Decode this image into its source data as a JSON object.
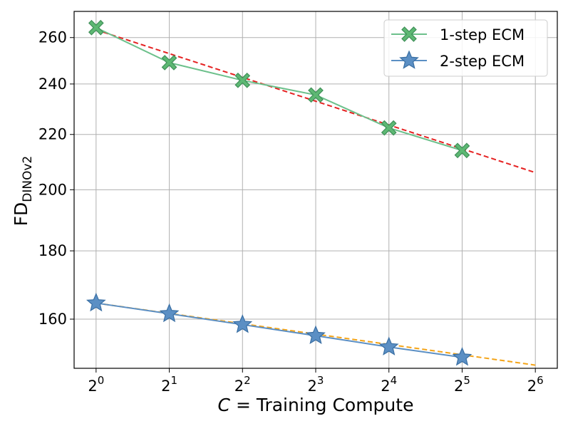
{
  "chart_data": {
    "type": "line",
    "x_scale": "log2",
    "y_scale": "log",
    "xlim_exp": [
      -0.3,
      6.3
    ],
    "ylim": [
      147,
      272
    ],
    "x_ticks": [
      {
        "base": "2",
        "exp": "0"
      },
      {
        "base": "2",
        "exp": "1"
      },
      {
        "base": "2",
        "exp": "2"
      },
      {
        "base": "2",
        "exp": "3"
      },
      {
        "base": "2",
        "exp": "4"
      },
      {
        "base": "2",
        "exp": "5"
      },
      {
        "base": "2",
        "exp": "6"
      }
    ],
    "x_tick_values": [
      1,
      2,
      4,
      8,
      16,
      32,
      64
    ],
    "y_ticks": [
      160,
      180,
      200,
      220,
      240,
      260
    ],
    "grid": true,
    "legend_position": "top-right",
    "xlabel": {
      "var": "C",
      "rest": " = Training Compute"
    },
    "ylabel": {
      "main": "FD",
      "sub": "DINOv2"
    },
    "series": [
      {
        "name": "1-step ECM",
        "marker": "x",
        "color": "#5db873",
        "line_color": "#6cc08b",
        "x": [
          1,
          2,
          4,
          8,
          16,
          32
        ],
        "y": [
          264.5,
          249,
          241.5,
          235.5,
          222.5,
          214
        ]
      },
      {
        "name": "2-step ECM",
        "marker": "star",
        "color": "#5b8fc4",
        "line_color": "#5b8fc4",
        "x": [
          1,
          2,
          4,
          8,
          16,
          32
        ],
        "y": [
          164.5,
          161.5,
          158.5,
          155.5,
          152.5,
          149.8
        ]
      }
    ],
    "fits": [
      {
        "color": "#e52121",
        "x": [
          1,
          64
        ],
        "y": [
          263.5,
          206
        ]
      },
      {
        "color": "#f4a418",
        "x": [
          1,
          64
        ],
        "y": [
          164.5,
          147.8
        ]
      }
    ]
  }
}
